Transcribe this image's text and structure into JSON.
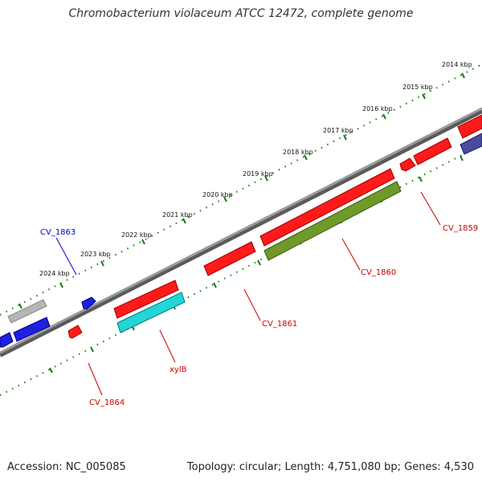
{
  "title": "Chromobacterium violaceum ATCC 12472, complete genome",
  "footer": {
    "accession": "Accession: NC_005085",
    "topology": "Topology: circular; Length: 4,751,080 bp; Genes: 4,530"
  },
  "colors": {
    "backbone": "#808080",
    "ticks": "#1a7a1a",
    "red_gene": "#ff0000",
    "blue_gene": "#0000ee",
    "cyan_gene": "#00cccc",
    "olive_gene": "#6b8e23",
    "gray_gene": "#b0b0b0",
    "purple_gene": "#4b4b9e"
  },
  "scale_labels": [
    {
      "text": "2014 kbp"
    },
    {
      "text": "2015 kbp"
    },
    {
      "text": "2016 kbp"
    },
    {
      "text": "2017 kbp"
    },
    {
      "text": "2018 kbp"
    },
    {
      "text": "2019 kbp"
    },
    {
      "text": "2020 kbp"
    },
    {
      "text": "2021 kbp"
    },
    {
      "text": "2022 kbp"
    },
    {
      "text": "2023 kbp"
    },
    {
      "text": "2024 kbp"
    }
  ],
  "gene_labels": [
    {
      "text": "CV_1863",
      "color": "#0000cc"
    },
    {
      "text": "CV_1859",
      "color": "#cc0000"
    },
    {
      "text": "CV_1860",
      "color": "#cc0000"
    },
    {
      "text": "CV_1861",
      "color": "#cc0000"
    },
    {
      "text": "xylB",
      "color": "#cc0000"
    },
    {
      "text": "CV_1864",
      "color": "#cc0000"
    }
  ]
}
